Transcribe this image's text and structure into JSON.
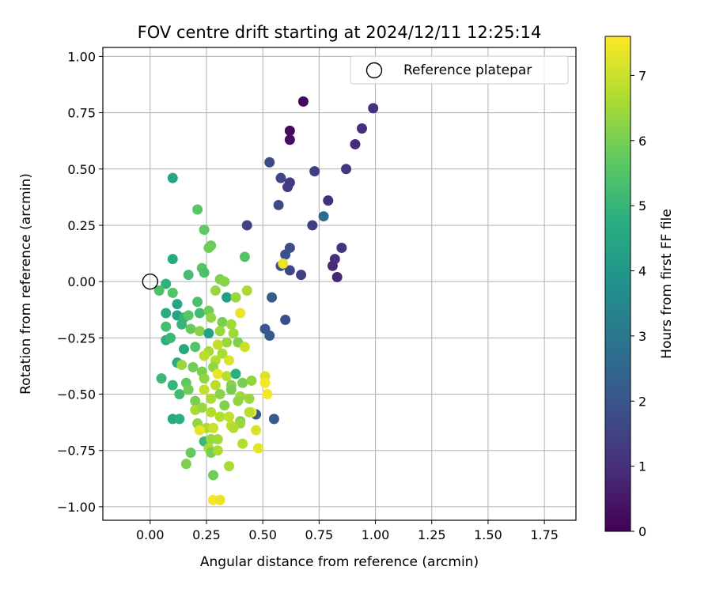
{
  "chart_data": {
    "type": "scatter",
    "title": "FOV centre drift starting at 2024/12/11 12:25:14",
    "xlabel": "Angular distance from reference (arcmin)",
    "ylabel": "Rotation from reference (arcmin)",
    "xlim": [
      -0.21,
      1.89
    ],
    "ylim": [
      -1.06,
      1.04
    ],
    "xticks": [
      0.0,
      0.25,
      0.5,
      0.75,
      1.0,
      1.25,
      1.5,
      1.75
    ],
    "xtick_labels": [
      "0.00",
      "0.25",
      "0.50",
      "0.75",
      "1.00",
      "1.25",
      "1.50",
      "1.75"
    ],
    "yticks": [
      -1.0,
      -0.75,
      -0.5,
      -0.25,
      0.0,
      0.25,
      0.5,
      0.75,
      1.0
    ],
    "ytick_labels": [
      "−1.00",
      "−0.75",
      "−0.50",
      "−0.25",
      "0.00",
      "0.25",
      "0.50",
      "0.75",
      "1.00"
    ],
    "grid": true,
    "legend": {
      "placement": "top-right",
      "entries": [
        {
          "label": "Reference platepar",
          "marker": "open-circle"
        }
      ]
    },
    "reference_point": {
      "x": 0.0,
      "y": 0.0
    },
    "colorbar": {
      "label": "Hours from first FF file",
      "colormap": "viridis",
      "range": [
        0,
        7.6
      ],
      "ticks": [
        0,
        1,
        2,
        3,
        4,
        5,
        6,
        7
      ],
      "tick_labels": [
        "0",
        "1",
        "2",
        "3",
        "4",
        "5",
        "6",
        "7"
      ]
    },
    "points": [
      [
        0.68,
        0.8,
        0.1
      ],
      [
        0.62,
        0.67,
        0.2
      ],
      [
        0.62,
        0.63,
        0.3
      ],
      [
        0.99,
        0.77,
        1.0
      ],
      [
        0.94,
        0.68,
        1.0
      ],
      [
        0.91,
        0.61,
        0.9
      ],
      [
        0.53,
        0.53,
        1.7
      ],
      [
        0.58,
        0.46,
        1.6
      ],
      [
        0.73,
        0.49,
        1.4
      ],
      [
        0.87,
        0.5,
        1.2
      ],
      [
        0.62,
        0.44,
        1.3
      ],
      [
        0.61,
        0.42,
        1.3
      ],
      [
        0.57,
        0.34,
        1.7
      ],
      [
        0.79,
        0.36,
        1.0
      ],
      [
        0.77,
        0.29,
        2.7
      ],
      [
        0.43,
        0.25,
        1.5
      ],
      [
        0.72,
        0.25,
        1.4
      ],
      [
        0.85,
        0.15,
        1.1
      ],
      [
        0.62,
        0.15,
        1.8
      ],
      [
        0.6,
        0.12,
        1.9
      ],
      [
        0.82,
        0.1,
        1.0
      ],
      [
        0.81,
        0.07,
        0.9
      ],
      [
        0.58,
        0.07,
        1.9
      ],
      [
        0.62,
        0.05,
        1.6
      ],
      [
        0.67,
        0.03,
        1.4
      ],
      [
        0.83,
        0.02,
        0.8
      ],
      [
        0.59,
        0.08,
        7.4
      ],
      [
        0.54,
        -0.07,
        2.2
      ],
      [
        0.51,
        -0.21,
        2.1
      ],
      [
        0.53,
        -0.24,
        2.1
      ],
      [
        0.6,
        -0.17,
        1.8
      ],
      [
        0.55,
        -0.61,
        2.1
      ],
      [
        0.47,
        -0.59,
        2.2
      ],
      [
        0.1,
        0.46,
        4.5
      ],
      [
        0.21,
        0.32,
        5.6
      ],
      [
        0.24,
        0.23,
        5.7
      ],
      [
        0.27,
        0.16,
        5.8
      ],
      [
        0.26,
        0.15,
        5.9
      ],
      [
        0.42,
        0.11,
        5.5
      ],
      [
        0.1,
        0.1,
        4.6
      ],
      [
        0.23,
        0.06,
        5.6
      ],
      [
        0.24,
        0.04,
        5.4
      ],
      [
        0.17,
        0.03,
        5.3
      ],
      [
        0.07,
        -0.01,
        4.9
      ],
      [
        0.04,
        -0.04,
        5.4
      ],
      [
        0.1,
        -0.05,
        5.5
      ],
      [
        0.31,
        0.01,
        6.1
      ],
      [
        0.33,
        0.0,
        6.2
      ],
      [
        0.29,
        -0.04,
        6.4
      ],
      [
        0.43,
        -0.04,
        6.6
      ],
      [
        0.34,
        -0.07,
        4.2
      ],
      [
        0.38,
        -0.07,
        6.4
      ],
      [
        0.12,
        -0.1,
        4.5
      ],
      [
        0.21,
        -0.09,
        5.4
      ],
      [
        0.07,
        -0.14,
        4.7
      ],
      [
        0.12,
        -0.15,
        4.4
      ],
      [
        0.15,
        -0.16,
        5.0
      ],
      [
        0.22,
        -0.14,
        5.2
      ],
      [
        0.26,
        -0.13,
        5.9
      ],
      [
        0.27,
        -0.16,
        6.3
      ],
      [
        0.32,
        -0.18,
        6.0
      ],
      [
        0.36,
        -0.19,
        6.5
      ],
      [
        0.4,
        -0.14,
        7.4
      ],
      [
        0.07,
        -0.2,
        5.3
      ],
      [
        0.14,
        -0.19,
        5.0
      ],
      [
        0.18,
        -0.21,
        5.8
      ],
      [
        0.22,
        -0.22,
        6.2
      ],
      [
        0.26,
        -0.23,
        4.4
      ],
      [
        0.31,
        -0.22,
        6.4
      ],
      [
        0.37,
        -0.23,
        6.5
      ],
      [
        0.34,
        -0.27,
        6.4
      ],
      [
        0.39,
        -0.27,
        6.1
      ],
      [
        0.07,
        -0.26,
        4.8
      ],
      [
        0.09,
        -0.25,
        5.2
      ],
      [
        0.15,
        -0.3,
        4.6
      ],
      [
        0.2,
        -0.29,
        5.5
      ],
      [
        0.26,
        -0.31,
        6.6
      ],
      [
        0.3,
        -0.28,
        6.9
      ],
      [
        0.24,
        -0.33,
        6.8
      ],
      [
        0.29,
        -0.35,
        6.7
      ],
      [
        0.32,
        -0.32,
        6.6
      ],
      [
        0.42,
        -0.29,
        7.0
      ],
      [
        0.35,
        -0.35,
        7.2
      ],
      [
        0.12,
        -0.36,
        4.7
      ],
      [
        0.19,
        -0.38,
        5.9
      ],
      [
        0.23,
        -0.4,
        6.0
      ],
      [
        0.28,
        -0.38,
        6.3
      ],
      [
        0.3,
        -0.41,
        7.4
      ],
      [
        0.34,
        -0.42,
        6.8
      ],
      [
        0.38,
        -0.41,
        4.8
      ],
      [
        0.14,
        -0.37,
        6.4
      ],
      [
        0.16,
        -0.45,
        5.7
      ],
      [
        0.24,
        -0.43,
        6.3
      ],
      [
        0.29,
        -0.46,
        6.8
      ],
      [
        0.36,
        -0.46,
        6.2
      ],
      [
        0.41,
        -0.45,
        6.0
      ],
      [
        0.45,
        -0.44,
        6.3
      ],
      [
        0.05,
        -0.43,
        5.1
      ],
      [
        0.1,
        -0.46,
        5.0
      ],
      [
        0.17,
        -0.48,
        5.9
      ],
      [
        0.24,
        -0.48,
        6.9
      ],
      [
        0.31,
        -0.5,
        6.2
      ],
      [
        0.36,
        -0.48,
        6.0
      ],
      [
        0.4,
        -0.51,
        6.5
      ],
      [
        0.44,
        -0.52,
        6.4
      ],
      [
        0.51,
        -0.42,
        7.2
      ],
      [
        0.51,
        -0.45,
        7.5
      ],
      [
        0.52,
        -0.5,
        7.5
      ],
      [
        0.13,
        -0.5,
        5.2
      ],
      [
        0.2,
        -0.53,
        6.0
      ],
      [
        0.27,
        -0.52,
        6.6
      ],
      [
        0.33,
        -0.55,
        6.1
      ],
      [
        0.39,
        -0.53,
        6.3
      ],
      [
        0.45,
        -0.58,
        7.5
      ],
      [
        0.1,
        -0.61,
        4.6
      ],
      [
        0.13,
        -0.61,
        4.8
      ],
      [
        0.2,
        -0.57,
        6.6
      ],
      [
        0.23,
        -0.56,
        6.4
      ],
      [
        0.27,
        -0.58,
        6.7
      ],
      [
        0.31,
        -0.6,
        6.7
      ],
      [
        0.35,
        -0.6,
        6.9
      ],
      [
        0.4,
        -0.62,
        6.1
      ],
      [
        0.21,
        -0.63,
        6.3
      ],
      [
        0.25,
        -0.65,
        6.6
      ],
      [
        0.28,
        -0.65,
        7.0
      ],
      [
        0.36,
        -0.64,
        6.9
      ],
      [
        0.4,
        -0.63,
        6.4
      ],
      [
        0.47,
        -0.66,
        7.2
      ],
      [
        0.22,
        -0.66,
        7.3
      ],
      [
        0.24,
        -0.71,
        5.1
      ],
      [
        0.27,
        -0.7,
        6.4
      ],
      [
        0.3,
        -0.7,
        6.5
      ],
      [
        0.37,
        -0.65,
        6.7
      ],
      [
        0.41,
        -0.72,
        6.7
      ],
      [
        0.26,
        -0.74,
        6.6
      ],
      [
        0.27,
        -0.76,
        6.0
      ],
      [
        0.3,
        -0.75,
        6.6
      ],
      [
        0.48,
        -0.74,
        7.3
      ],
      [
        0.18,
        -0.76,
        5.8
      ],
      [
        0.16,
        -0.81,
        6.1
      ],
      [
        0.35,
        -0.82,
        6.6
      ],
      [
        0.28,
        -0.86,
        5.9
      ],
      [
        0.28,
        -0.97,
        7.5
      ],
      [
        0.31,
        -0.97,
        7.4
      ],
      [
        0.44,
        -0.58,
        6.8
      ],
      [
        0.17,
        -0.15,
        5.6
      ],
      [
        0.09,
        -0.25,
        5.1
      ]
    ]
  }
}
